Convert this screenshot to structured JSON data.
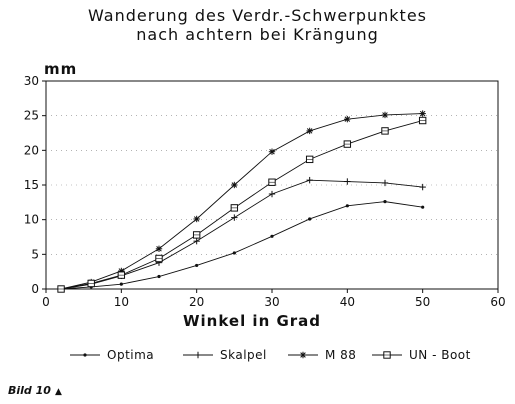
{
  "caption": {
    "text": "Bild 10",
    "arrow": "▲"
  },
  "chart_data": {
    "type": "line",
    "title": "Wanderung des Verdr.-Schwerpunktes",
    "subtitle": "nach achtern bei Krängung",
    "xlabel": "Winkel in Grad",
    "ylabel": "mm",
    "xlim": [
      0,
      60
    ],
    "ylim": [
      0,
      30
    ],
    "xticks": [
      0,
      10,
      20,
      30,
      40,
      50,
      60
    ],
    "yticks": [
      0,
      5,
      10,
      15,
      20,
      25,
      30
    ],
    "grid": true,
    "legend_position": "bottom",
    "series": [
      {
        "name": "Optima",
        "marker": "dot",
        "x": [
          2,
          6,
          10,
          15,
          20,
          25,
          30,
          35,
          40,
          45,
          50
        ],
        "y": [
          0,
          0.3,
          0.7,
          1.8,
          3.4,
          5.2,
          7.6,
          10.1,
          12.0,
          12.6,
          11.8
        ]
      },
      {
        "name": "Skalpel",
        "marker": "plus",
        "x": [
          2,
          6,
          10,
          15,
          20,
          25,
          30,
          35,
          40,
          45,
          50
        ],
        "y": [
          0,
          0.7,
          1.9,
          3.8,
          6.9,
          10.3,
          13.7,
          15.7,
          15.5,
          15.3,
          14.7
        ]
      },
      {
        "name": "M 88",
        "marker": "star",
        "x": [
          2,
          6,
          10,
          15,
          20,
          25,
          30,
          35,
          40,
          45,
          50
        ],
        "y": [
          0,
          1.0,
          2.6,
          5.8,
          10.1,
          15.0,
          19.8,
          22.8,
          24.5,
          25.1,
          25.3
        ]
      },
      {
        "name": "UN - Boot",
        "marker": "square",
        "x": [
          2,
          6,
          10,
          15,
          20,
          25,
          30,
          35,
          40,
          45,
          50
        ],
        "y": [
          0,
          0.8,
          2.0,
          4.4,
          7.8,
          11.7,
          15.4,
          18.7,
          20.9,
          22.8,
          24.3
        ]
      }
    ]
  }
}
